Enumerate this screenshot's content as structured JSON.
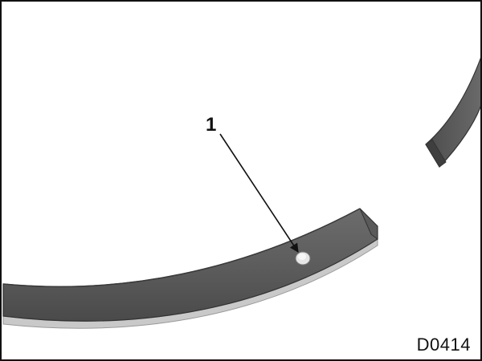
{
  "figure": {
    "callout_label": "1",
    "figure_code": "D0414"
  },
  "illustration": {
    "ring_segment_large": "piston-ring-segment",
    "ring_segment_small": "piston-ring-segment",
    "marker": "hole-marker",
    "pointer": "leader-line-arrow"
  }
}
